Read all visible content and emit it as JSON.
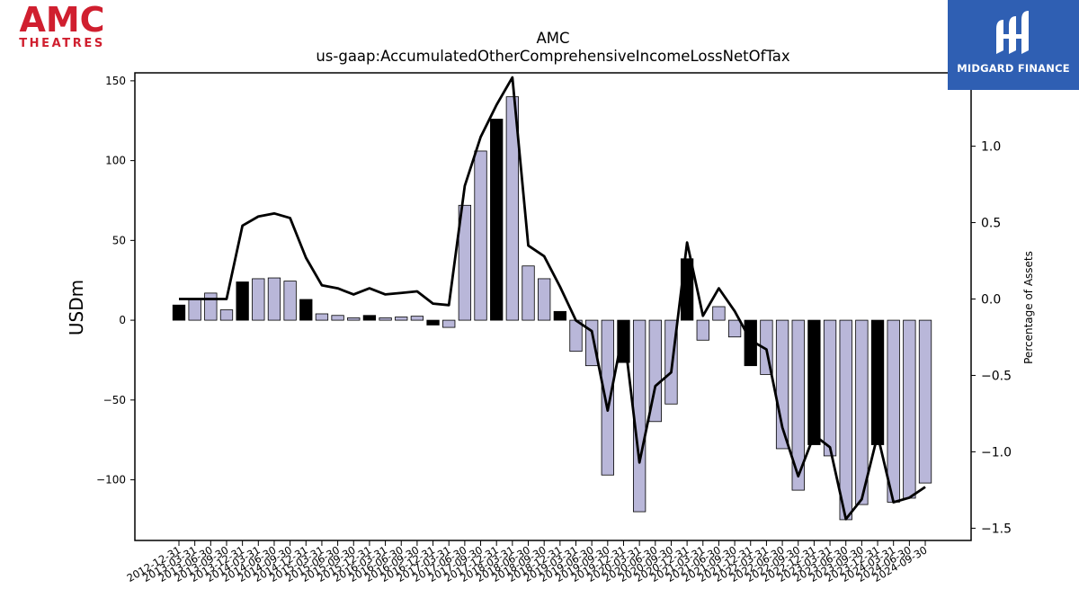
{
  "logos": {
    "left": {
      "brand": "AMC",
      "subtitle": "THEATRES",
      "color": "#d01f2f"
    },
    "right": {
      "name": "MIDGARD FINANCE",
      "color": "#2f5fb3"
    }
  },
  "chart_data": {
    "type": "bar",
    "title": "AMC",
    "subtitle": "us-gaap:AccumulatedOtherComprehensiveIncomeLossNetOfTax",
    "ylabel": "USDm",
    "y2label": "Percentage of Assets",
    "ylim": [
      -138,
      155
    ],
    "y2lim": [
      -1.58,
      1.48
    ],
    "yticks": [
      "150",
      "100",
      "50",
      "0",
      "−50",
      "−100"
    ],
    "y2ticks": [
      "1.0",
      "0.5",
      "0.0",
      "−0.5",
      "−1.0",
      "−1.5"
    ],
    "x_tick_labels": [
      "2012-12-31",
      "2013-03-31",
      "2013-06-30",
      "2013-09-30",
      "2013-12-31",
      "2014-03-31",
      "2014-06-30",
      "2014-09-30",
      "2014-12-31",
      "2015-03-31",
      "2015-06-30",
      "2015-09-30",
      "2015-12-31",
      "2016-03-31",
      "2016-06-30",
      "2016-09-30",
      "2016-12-31",
      "2017-03-31",
      "2017-06-30",
      "2017-09-30",
      "2017-12-31",
      "2018-03-31",
      "2018-06-30",
      "2018-09-30",
      "2018-12-31",
      "2019-03-31",
      "2019-06-30",
      "2019-09-30",
      "2019-12-31",
      "2020-03-31",
      "2020-06-30",
      "2020-09-30",
      "2020-12-31",
      "2021-03-31",
      "2021-06-30",
      "2021-09-30",
      "2021-12-31",
      "2022-03-31",
      "2022-06-30",
      "2022-09-30",
      "2022-12-31",
      "2023-03-31",
      "2023-06-30",
      "2023-09-30",
      "2023-12-31",
      "2024-03-31",
      "2024-06-30",
      "2024-09-30"
    ],
    "bar_color": "#b9b7d9",
    "highlight_color": "#000000",
    "series": [
      {
        "kind": "bar",
        "axis": "left",
        "values": [
          9.5,
          13.5,
          17,
          6.5,
          24,
          26,
          26.5,
          24.5,
          13,
          4,
          3,
          1.5,
          3,
          1.5,
          2,
          2.5,
          -3,
          -4.5,
          72,
          106,
          126,
          140,
          34,
          26,
          5.5,
          -19.5,
          -28.5,
          -97,
          -26.5,
          -120,
          -63.5,
          -52.5,
          38.5,
          -12.5,
          8.5,
          -10.5,
          -28.5,
          -34,
          -80.5,
          -106.5,
          -78,
          -85,
          -125,
          -115.5,
          -78,
          -114,
          -111.5,
          -102
        ],
        "highlight": [
          true,
          false,
          false,
          false,
          true,
          false,
          false,
          false,
          true,
          false,
          false,
          false,
          true,
          false,
          false,
          false,
          true,
          false,
          false,
          false,
          true,
          false,
          false,
          false,
          true,
          false,
          false,
          false,
          true,
          false,
          false,
          false,
          true,
          false,
          false,
          false,
          true,
          false,
          false,
          false,
          true,
          false,
          false,
          false,
          true,
          false,
          false,
          false
        ]
      },
      {
        "kind": "line",
        "axis": "right",
        "color": "#000000",
        "values": [
          0.0,
          0.0,
          0.0,
          0.0,
          0.48,
          0.54,
          0.56,
          0.53,
          0.27,
          0.09,
          0.07,
          0.03,
          0.07,
          0.03,
          0.04,
          0.05,
          -0.03,
          -0.04,
          0.74,
          1.06,
          1.27,
          1.45,
          0.35,
          0.28,
          0.08,
          -0.14,
          -0.21,
          -0.73,
          -0.2,
          -1.07,
          -0.57,
          -0.48,
          0.37,
          -0.11,
          0.07,
          -0.08,
          -0.27,
          -0.33,
          -0.84,
          -1.16,
          -0.89,
          -0.97,
          -1.44,
          -1.31,
          -0.89,
          -1.33,
          -1.3,
          -1.23
        ]
      }
    ]
  }
}
